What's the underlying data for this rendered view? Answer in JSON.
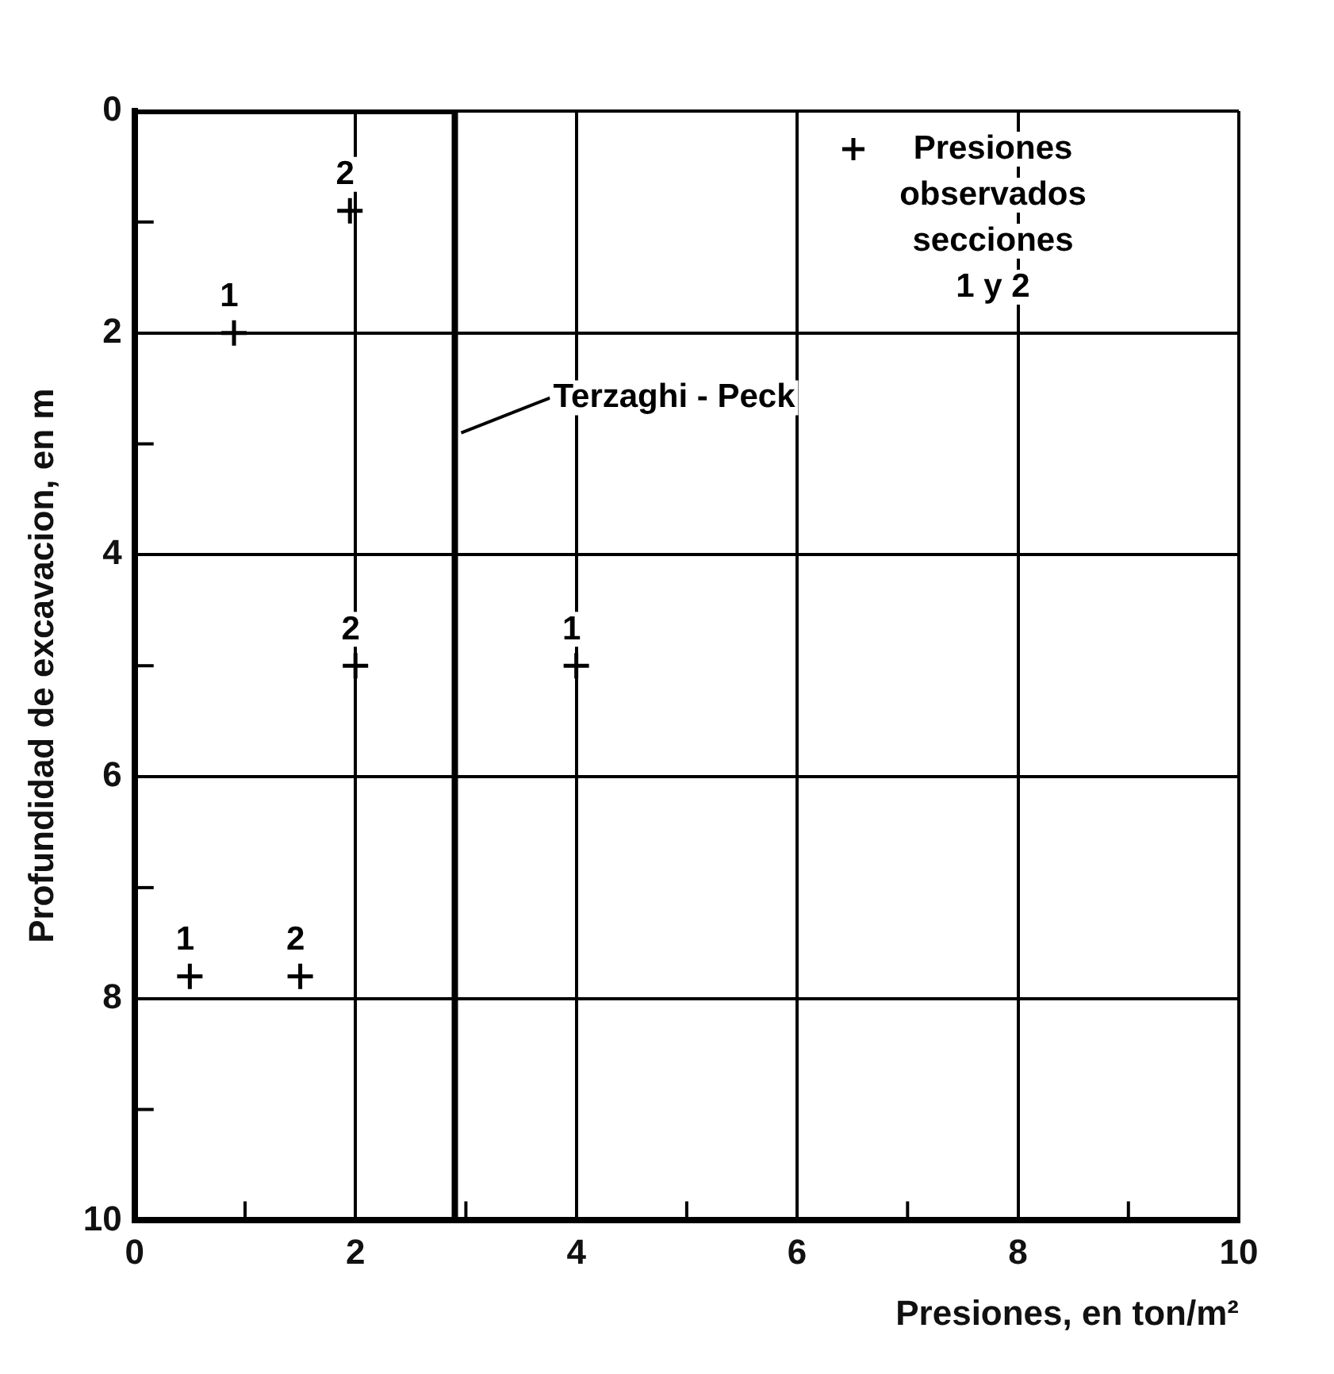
{
  "chart_data": {
    "type": "scatter",
    "xlabel": "Presiones, en ton/m²",
    "ylabel": "Profundidad de excavacion, en m",
    "xlim": [
      0,
      10
    ],
    "ylim": [
      10,
      0
    ],
    "xticks": [
      0,
      {
        "value": 1,
        "label": null
      },
      2,
      {
        "value": 3,
        "label": null
      },
      4,
      {
        "value": 5,
        "label": null
      },
      6,
      {
        "value": 7,
        "label": null
      },
      8,
      {
        "value": 9,
        "label": null
      },
      10
    ],
    "yticks": [
      0,
      {
        "value": 1,
        "label": null
      },
      2,
      {
        "value": 3,
        "label": null
      },
      4,
      {
        "value": 5,
        "label": null
      },
      6,
      {
        "value": 7,
        "label": null
      },
      8,
      {
        "value": 9,
        "label": null
      },
      10
    ],
    "grid": true,
    "legend": "top right",
    "series": [
      {
        "name": "Presiones observados secciones 1 y 2",
        "marker": "cross",
        "color": "#000000",
        "x": [
          1.95,
          0.9,
          2.0,
          4.0,
          0.5,
          1.5
        ],
        "values": [
          0.9,
          2.0,
          5.0,
          5.0,
          7.8,
          7.8
        ]
      },
      {
        "name": "Terzaghi - Peck",
        "type": "line",
        "marker": "none",
        "line_style": "solid",
        "color": "#000000",
        "x": [
          0,
          2.9,
          2.9
        ],
        "values": [
          0,
          0,
          10
        ]
      }
    ],
    "annotations": [
      {
        "text": "2",
        "x": 1.95,
        "y": 0.9
      },
      {
        "text": "1",
        "x": 0.9,
        "y": 2.0
      },
      {
        "text": "2",
        "x": 2.0,
        "y": 5.0
      },
      {
        "text": "1",
        "x": 4.0,
        "y": 5.0
      },
      {
        "text": "1",
        "x": 0.5,
        "y": 7.8
      },
      {
        "text": "2",
        "x": 1.5,
        "y": 7.8
      }
    ]
  }
}
